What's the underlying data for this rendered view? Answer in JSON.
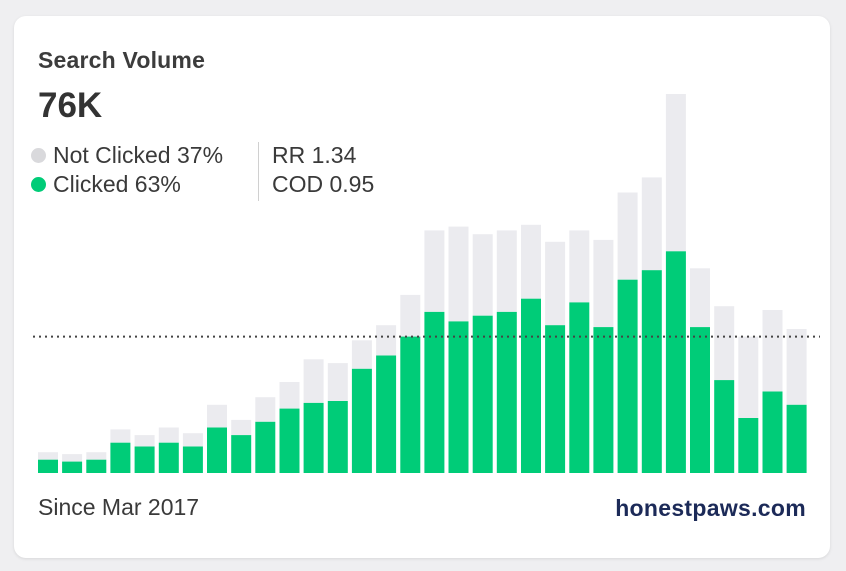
{
  "card": {
    "title": "Search Volume",
    "total": "76K",
    "legend": [
      {
        "label": "Not Clicked 37%",
        "color": "#d9d9dc"
      },
      {
        "label": "Clicked 63%",
        "color": "#00cc78"
      }
    ],
    "stats": [
      {
        "label": "RR 1.34"
      },
      {
        "label": "COD 0.95"
      }
    ],
    "footer": "Since Mar 2017",
    "brand": "honestpaws.com"
  },
  "colors": {
    "clicked": "#00cc78",
    "not_clicked": "#ebebef",
    "reference_line": "#444444"
  },
  "chart_data": {
    "type": "bar",
    "stacked": true,
    "title": "",
    "xlabel": "",
    "ylabel": "",
    "ylim": [
      0,
      100
    ],
    "grid": false,
    "legend_position": "top-left",
    "reference_line": 36,
    "series": [
      {
        "name": "Clicked 63%",
        "values": [
          3.5,
          3,
          3.5,
          8,
          7,
          8,
          7,
          12,
          10,
          13.5,
          17,
          18.5,
          19,
          27.5,
          31,
          36,
          42.5,
          40,
          41.5,
          42.5,
          46,
          39,
          45,
          38.5,
          51,
          53.5,
          58.5,
          38.5,
          24.5,
          14.5,
          21.5,
          18
        ]
      },
      {
        "name": "Not Clicked 37%",
        "values": [
          2,
          2,
          2,
          3.5,
          3,
          4,
          3.5,
          6,
          4,
          6.5,
          7,
          11.5,
          10,
          7.5,
          8,
          11,
          21.5,
          25,
          21.5,
          21.5,
          19.5,
          22,
          19,
          23,
          23,
          24.5,
          41.5,
          15.5,
          19.5,
          21.5,
          21.5,
          20
        ]
      }
    ]
  }
}
